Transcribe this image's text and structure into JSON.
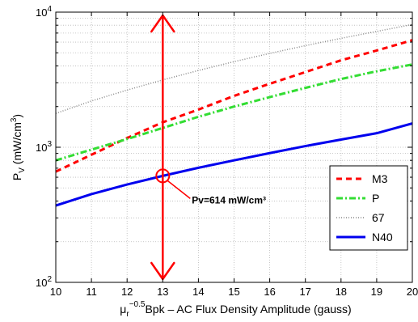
{
  "chart_data": {
    "type": "line",
    "xlabel": "Bpk – AC Flux Density Amplitude (gauss)",
    "xlabel_prefix": "μ",
    "xlabel_sub": "r",
    "xlabel_sup": "−0.5",
    "ylabel": "P",
    "ylabel_sub": "V",
    "ylabel_unit": "(mW/cm",
    "ylabel_unit_sup": "3",
    "ylabel_unit_end": ")",
    "xlim": [
      10,
      20
    ],
    "ylim": [
      100,
      10000
    ],
    "yscale": "log",
    "grid": true,
    "x_ticks": [
      10,
      11,
      12,
      13,
      14,
      15,
      16,
      17,
      18,
      19,
      20
    ],
    "x_tick_labels": [
      "10",
      "11",
      "12",
      "13",
      "14",
      "15",
      "16",
      "17",
      "18",
      "19",
      "20"
    ],
    "y_ticks": [
      {
        "value": 100,
        "base": "10",
        "exp": "2"
      },
      {
        "value": 1000,
        "base": "10",
        "exp": "3"
      },
      {
        "value": 10000,
        "base": "10",
        "exp": "4"
      }
    ],
    "legend_position": "lower-right",
    "series": [
      {
        "name": "M3",
        "color": "#ff0000",
        "dash": "7,5",
        "width": 3,
        "x": [
          10,
          11,
          12,
          13,
          14,
          15,
          16,
          17,
          18,
          19,
          20
        ],
        "y": [
          660,
          880,
          1170,
          1530,
          1900,
          2400,
          2950,
          3600,
          4400,
          5200,
          6200
        ]
      },
      {
        "name": "P",
        "color": "#33dd33",
        "dash": "8,3,2,3",
        "width": 3,
        "x": [
          10,
          11,
          12,
          13,
          14,
          15,
          16,
          17,
          18,
          19,
          20
        ],
        "y": [
          800,
          960,
          1150,
          1390,
          1680,
          2000,
          2350,
          2750,
          3200,
          3650,
          4100
        ]
      },
      {
        "name": "67",
        "color": "#888888",
        "dash": "1,2",
        "width": 1.5,
        "x": [
          10,
          11,
          12,
          13,
          14,
          15,
          16,
          17,
          18,
          19,
          20
        ],
        "y": [
          1780,
          2200,
          2650,
          3150,
          3700,
          4300,
          4950,
          5650,
          6400,
          7200,
          8100
        ]
      },
      {
        "name": "N40",
        "color": "#0000ee",
        "dash": "",
        "width": 3,
        "x": [
          10,
          11,
          12,
          13,
          14,
          15,
          16,
          17,
          18,
          19,
          20
        ],
        "y": [
          370,
          450,
          530,
          614,
          705,
          800,
          905,
          1020,
          1140,
          1270,
          1500
        ]
      }
    ],
    "annotation": {
      "label": "Pv=614 mW/cm³",
      "x": 13,
      "y": 614,
      "arrow_color": "#ff0000"
    }
  }
}
